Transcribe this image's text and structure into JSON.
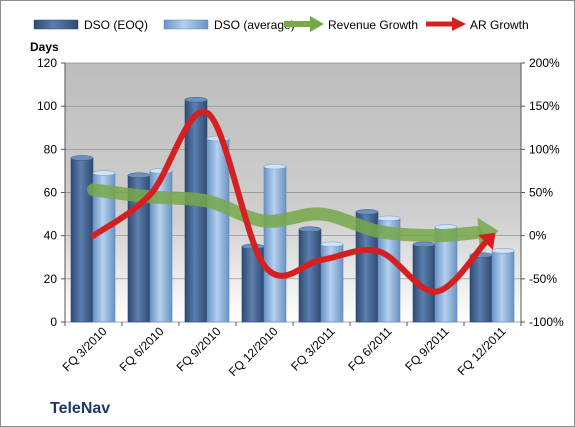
{
  "chart_data": {
    "type": "bar",
    "company": "TeleNav",
    "ylabel_left": "Days",
    "ylim_left": [
      0,
      120
    ],
    "yticks_left": [
      "0",
      "20",
      "40",
      "60",
      "80",
      "100",
      "120"
    ],
    "ylim_right": [
      -100,
      200
    ],
    "yticks_right": [
      "-100%",
      "-50%",
      "0%",
      "50%",
      "100%",
      "150%",
      "200%"
    ],
    "categories": [
      "FQ 3/2010",
      "FQ 6/2010",
      "FQ 9/2010",
      "FQ 12/2010",
      "FQ 3/2011",
      "FQ 6/2011",
      "FQ 9/2011",
      "FQ 12/2011"
    ],
    "series": [
      {
        "name": "DSO (EOQ)",
        "kind": "bar",
        "axis": "left",
        "color": "#4a6a9a",
        "values": [
          76,
          68,
          103,
          35,
          43,
          51,
          36,
          31
        ]
      },
      {
        "name": "DSO (average)",
        "kind": "bar",
        "axis": "left",
        "color": "#8fb4dc",
        "values": [
          69,
          70,
          85,
          72,
          36,
          48,
          44,
          33
        ]
      },
      {
        "name": "Revenue Growth",
        "kind": "line",
        "axis": "right",
        "unit": "%",
        "color": "#77a84a",
        "values": [
          53,
          45,
          40,
          17,
          25,
          5,
          0,
          5
        ]
      },
      {
        "name": "AR Growth",
        "kind": "line",
        "axis": "right",
        "unit": "%",
        "color": "#d42020",
        "values": [
          0,
          48,
          142,
          -35,
          -28,
          -18,
          -65,
          0
        ]
      }
    ],
    "grid": true,
    "legend": "top"
  }
}
